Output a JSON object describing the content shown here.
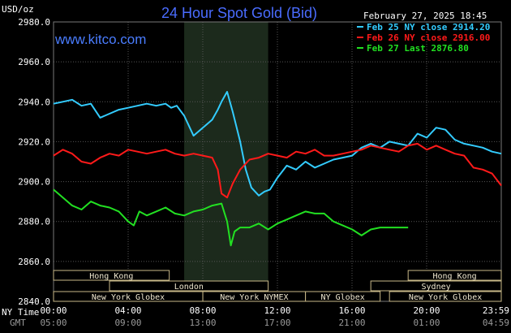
{
  "header": {
    "title": "24 Hour Spot Gold (Bid)",
    "site": "www.kitco.com",
    "date": "February 27, 2025 18:45",
    "y_unit": "USD/oz"
  },
  "legend": [
    {
      "label": "Feb 25 NY close 2914.20",
      "color": "#33ccff"
    },
    {
      "label": "Feb 26 NY close 2916.00",
      "color": "#ff1a1a"
    },
    {
      "label": "Feb 27 Last 2876.80",
      "color": "#22e022"
    }
  ],
  "axis_rows": {
    "primary_label": "NY Time",
    "secondary_label": "GMT",
    "primary_ticks": [
      "00:00",
      "04:00",
      "08:00",
      "12:00",
      "16:00",
      "20:00",
      "23:59"
    ],
    "secondary_ticks": [
      "05:00",
      "09:00",
      "13:00",
      "17:00",
      "21:00",
      "01:00",
      "04:59"
    ]
  },
  "sessions": [
    {
      "name": "Hong Kong",
      "start": 0,
      "end": 6.2,
      "row": 0
    },
    {
      "name": "Hong Kong",
      "start": 19,
      "end": 23.99,
      "row": 0
    },
    {
      "name": "London",
      "start": 3,
      "end": 11.5,
      "row": 1
    },
    {
      "name": "Sydney",
      "start": 17,
      "end": 23.99,
      "row": 1
    },
    {
      "name": "New York Globex",
      "start": 0,
      "end": 8,
      "row": 2
    },
    {
      "name": "New York NYMEX",
      "start": 8,
      "end": 13.5,
      "row": 2
    },
    {
      "name": "NY Globex",
      "start": 13.5,
      "end": 17.5,
      "row": 2
    },
    {
      "name": "New York Globex",
      "start": 18,
      "end": 23.99,
      "row": 2
    }
  ],
  "chart_data": {
    "type": "line",
    "xlabel": "NY Time",
    "ylabel": "USD/oz",
    "xlim": [
      0,
      23.99
    ],
    "ylim": [
      2840,
      2980
    ],
    "y_ticks": [
      "2840.0",
      "2860.0",
      "2880.0",
      "2900.0",
      "2920.0",
      "2940.0",
      "2960.0",
      "2980.0"
    ],
    "x_ticks": [
      "00:00",
      "04:00",
      "08:00",
      "12:00",
      "16:00",
      "20:00",
      "23:59"
    ],
    "grid": true,
    "legend_position": "top-right",
    "highlight_band": [
      7,
      11.5
    ],
    "series": [
      {
        "name": "Feb 25 NY close 2914.20",
        "color": "#33ccff",
        "x": [
          0,
          0.5,
          1,
          1.5,
          2,
          2.5,
          3,
          3.5,
          4,
          4.5,
          5,
          5.5,
          6,
          6.3,
          6.6,
          7,
          7.5,
          8,
          8.5,
          8.8,
          9,
          9.3,
          9.6,
          10,
          10.3,
          10.6,
          11,
          11.3,
          11.6,
          12,
          12.5,
          13,
          13.5,
          14,
          14.5,
          15,
          15.5,
          16,
          16.5,
          17,
          17.5,
          18,
          18.5,
          19,
          19.5,
          20,
          20.5,
          21,
          21.5,
          22,
          22.5,
          23,
          23.5,
          23.99
        ],
        "y": [
          2939,
          2940,
          2941,
          2938,
          2939,
          2932,
          2934,
          2936,
          2937,
          2938,
          2939,
          2938,
          2939,
          2937,
          2938,
          2933,
          2923,
          2927,
          2931,
          2936,
          2940,
          2945,
          2935,
          2920,
          2906,
          2897,
          2893,
          2895,
          2896,
          2902,
          2908,
          2906,
          2910,
          2907,
          2909,
          2911,
          2912,
          2913,
          2917,
          2919,
          2917,
          2920,
          2919,
          2918,
          2924,
          2922,
          2927,
          2926,
          2921,
          2919,
          2918,
          2917,
          2915,
          2914
        ]
      },
      {
        "name": "Feb 26 NY close 2916.00",
        "color": "#ff1a1a",
        "x": [
          0,
          0.5,
          1,
          1.5,
          2,
          2.5,
          3,
          3.5,
          4,
          4.5,
          5,
          5.5,
          6,
          6.5,
          7,
          7.5,
          8,
          8.5,
          8.8,
          9,
          9.3,
          9.6,
          10,
          10.5,
          11,
          11.5,
          12,
          12.5,
          13,
          13.5,
          14,
          14.5,
          15,
          15.5,
          16,
          16.5,
          17,
          17.5,
          18,
          18.5,
          19,
          19.5,
          20,
          20.5,
          21,
          21.5,
          22,
          22.5,
          23,
          23.5,
          23.99
        ],
        "y": [
          2913,
          2916,
          2914,
          2910,
          2909,
          2912,
          2914,
          2913,
          2916,
          2915,
          2914,
          2915,
          2916,
          2914,
          2913,
          2914,
          2913,
          2912,
          2906,
          2894,
          2892,
          2899,
          2906,
          2911,
          2912,
          2914,
          2913,
          2912,
          2915,
          2914,
          2916,
          2913,
          2913,
          2914,
          2915,
          2916,
          2918,
          2917,
          2916,
          2915,
          2918,
          2919,
          2916,
          2918,
          2916,
          2914,
          2913,
          2907,
          2906,
          2904,
          2898
        ]
      },
      {
        "name": "Feb 27 Last 2876.80",
        "color": "#22e022",
        "x": [
          0,
          0.5,
          1,
          1.5,
          2,
          2.5,
          3,
          3.5,
          4,
          4.3,
          4.6,
          5,
          5.5,
          6,
          6.5,
          7,
          7.5,
          8,
          8.5,
          9,
          9.3,
          9.5,
          9.7,
          10,
          10.5,
          11,
          11.5,
          12,
          12.5,
          13,
          13.5,
          14,
          14.5,
          15,
          15.5,
          16,
          16.5,
          17,
          17.5,
          18,
          18.5,
          19
        ],
        "y": [
          2896,
          2892,
          2888,
          2886,
          2890,
          2888,
          2887,
          2885,
          2880,
          2878,
          2885,
          2883,
          2885,
          2887,
          2884,
          2883,
          2885,
          2886,
          2888,
          2889,
          2880,
          2868,
          2875,
          2877,
          2877,
          2879,
          2876,
          2879,
          2881,
          2883,
          2885,
          2884,
          2884,
          2880,
          2878,
          2876,
          2873,
          2876,
          2877,
          2877,
          2877,
          2877
        ]
      }
    ]
  }
}
